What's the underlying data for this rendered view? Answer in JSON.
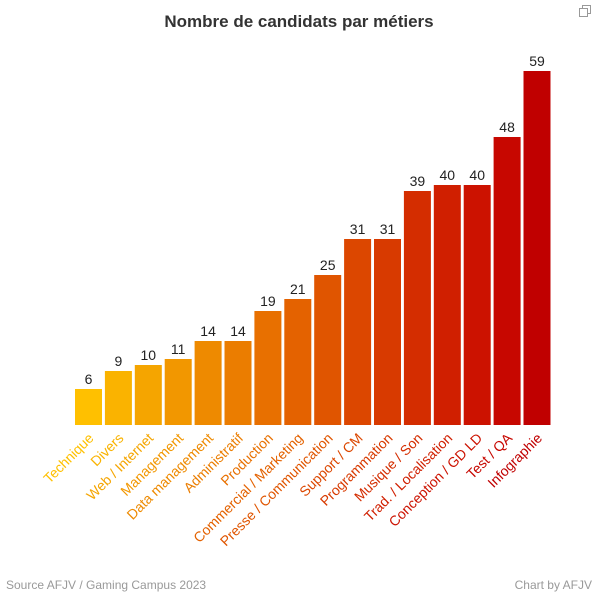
{
  "chart_data": {
    "type": "bar",
    "title": "Nombre de candidats par métiers",
    "categories": [
      "Technique",
      "Divers",
      "Web / Internet",
      "Management",
      "Data management",
      "Administratif",
      "Production",
      "Commercial / Marketing",
      "Presse / Communication",
      "Support / CM",
      "Programmation",
      "Musique / Son",
      "Trad. / Localisation",
      "Conception / GD LD",
      "Test / QA",
      "Infographie"
    ],
    "values": [
      6,
      9,
      10,
      11,
      14,
      14,
      19,
      21,
      25,
      31,
      31,
      39,
      40,
      40,
      48,
      59
    ],
    "colors": [
      "#FFC000",
      "#FAB300",
      "#F5A500",
      "#F29700",
      "#EE8A00",
      "#EB7D00",
      "#E87000",
      "#E46200",
      "#E05500",
      "#DC4700",
      "#D83A00",
      "#D42D00",
      "#D01F00",
      "#CC1200",
      "#C70700",
      "#C00000"
    ],
    "ylim": [
      0,
      59
    ],
    "xlabel": "",
    "ylabel": "",
    "grid": false,
    "legend": "none"
  },
  "footer": {
    "source": "Source AFJV / Gaming Campus 2023",
    "credit": "Chart by AFJV"
  },
  "icons": {
    "expand": "expand-icon"
  }
}
